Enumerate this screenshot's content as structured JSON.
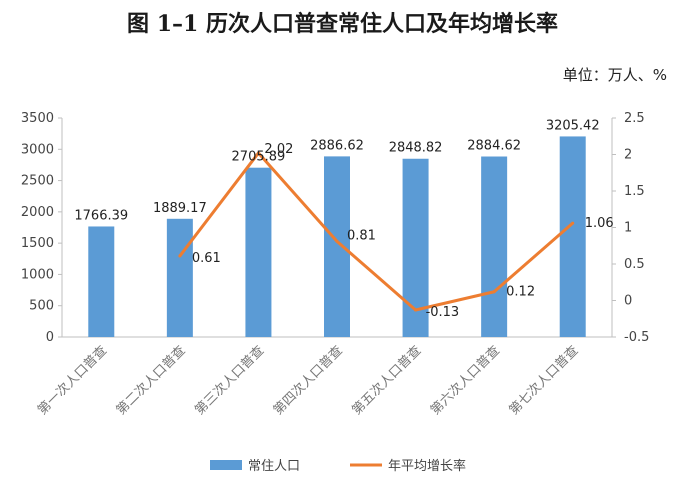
{
  "title": "图 1–1 历次人口普查常住人口及年均增长率",
  "unit_label": "单位：万人、%",
  "colors": {
    "bar": "#5b9bd5",
    "line": "#ed7d31",
    "axis": "#bfbfbf",
    "grid": "#e6e6e6"
  },
  "chart_data": {
    "type": "bar",
    "categories": [
      "第一次人口普查",
      "第二次人口普查",
      "第三次人口普查",
      "第四次人口普查",
      "第五次人口普查",
      "第六次人口普查",
      "第七次人口普查"
    ],
    "series": [
      {
        "name": "常住人口",
        "type": "bar",
        "axis": "left",
        "values": [
          1766.39,
          1889.17,
          2705.89,
          2886.62,
          2848.82,
          2884.62,
          3205.42
        ],
        "labels": [
          "1766.39",
          "1889.17",
          "2705.89",
          "2886.62",
          "2848.82",
          "2884.62",
          "3205.42"
        ]
      },
      {
        "name": "年平均增长率",
        "type": "line",
        "axis": "right",
        "values": [
          null,
          0.61,
          2.02,
          0.81,
          -0.13,
          0.12,
          1.06
        ],
        "labels": [
          "",
          "0.61",
          "2.02",
          "0.81",
          "-0.13",
          "0.12",
          "1.06"
        ]
      }
    ],
    "y_left": {
      "ylim": [
        0,
        3500
      ],
      "ticks": [
        "0",
        "500",
        "1000",
        "1500",
        "2000",
        "2500",
        "3000",
        "3500"
      ]
    },
    "y_right": {
      "ylim": [
        -0.5,
        2.5
      ],
      "ticks": [
        "-0.5",
        "0",
        "0.5",
        "1",
        "1.5",
        "2",
        "2.5"
      ]
    },
    "grid": false,
    "legend_position": "bottom"
  }
}
